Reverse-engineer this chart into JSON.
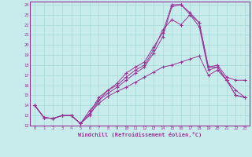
{
  "xlabel": "Windchill (Refroidissement éolien,°C)",
  "background_color": "#c8ecec",
  "grid_color": "#aadddd",
  "line_color": "#993399",
  "xlim": [
    -0.5,
    23.5
  ],
  "ylim": [
    12,
    24.3
  ],
  "yticks": [
    12,
    13,
    14,
    15,
    16,
    17,
    18,
    19,
    20,
    21,
    22,
    23,
    24
  ],
  "xticks": [
    0,
    1,
    2,
    3,
    4,
    5,
    6,
    7,
    8,
    9,
    10,
    11,
    12,
    13,
    14,
    15,
    16,
    17,
    18,
    19,
    20,
    21,
    22,
    23
  ],
  "line1_x": [
    0,
    1,
    2,
    3,
    4,
    5,
    6,
    7,
    8,
    9,
    10,
    11,
    12,
    13,
    14,
    15,
    16,
    17,
    18,
    19,
    20,
    21,
    22,
    23
  ],
  "line1_y": [
    14.0,
    12.8,
    12.7,
    13.0,
    13.0,
    12.2,
    13.2,
    14.2,
    14.9,
    15.4,
    15.8,
    16.3,
    16.8,
    17.3,
    17.8,
    18.0,
    18.3,
    18.6,
    18.9,
    17.0,
    17.5,
    16.5,
    15.0,
    14.8
  ],
  "line2_x": [
    0,
    1,
    2,
    3,
    4,
    5,
    6,
    7,
    8,
    9,
    10,
    11,
    12,
    13,
    14,
    15,
    16,
    17,
    18,
    19,
    20,
    21,
    22,
    23
  ],
  "line2_y": [
    14.0,
    12.8,
    12.7,
    13.0,
    13.0,
    12.2,
    13.2,
    14.8,
    15.5,
    16.2,
    17.2,
    17.8,
    18.3,
    19.8,
    21.2,
    24.0,
    24.0,
    23.2,
    22.2,
    17.8,
    18.0,
    16.8,
    16.5,
    16.5
  ],
  "line3_x": [
    0,
    1,
    2,
    3,
    4,
    5,
    6,
    7,
    8,
    9,
    10,
    11,
    12,
    13,
    14,
    15,
    16,
    17,
    18,
    19,
    20,
    21,
    22,
    23
  ],
  "line3_y": [
    14.0,
    12.8,
    12.7,
    13.0,
    13.0,
    12.2,
    13.0,
    14.5,
    15.2,
    15.8,
    16.5,
    17.2,
    17.8,
    19.2,
    20.8,
    23.8,
    24.0,
    23.0,
    21.8,
    17.5,
    17.8,
    16.5,
    15.0,
    14.8
  ],
  "line4_x": [
    0,
    1,
    2,
    3,
    4,
    5,
    6,
    7,
    8,
    9,
    10,
    11,
    12,
    13,
    14,
    15,
    16,
    17,
    18,
    19,
    20,
    21,
    22,
    23
  ],
  "line4_y": [
    14.0,
    12.8,
    12.7,
    13.0,
    13.0,
    12.2,
    13.5,
    14.5,
    15.5,
    16.0,
    16.8,
    17.5,
    18.0,
    19.5,
    21.5,
    22.5,
    22.0,
    23.0,
    22.2,
    17.8,
    17.8,
    16.5,
    15.5,
    14.8
  ]
}
